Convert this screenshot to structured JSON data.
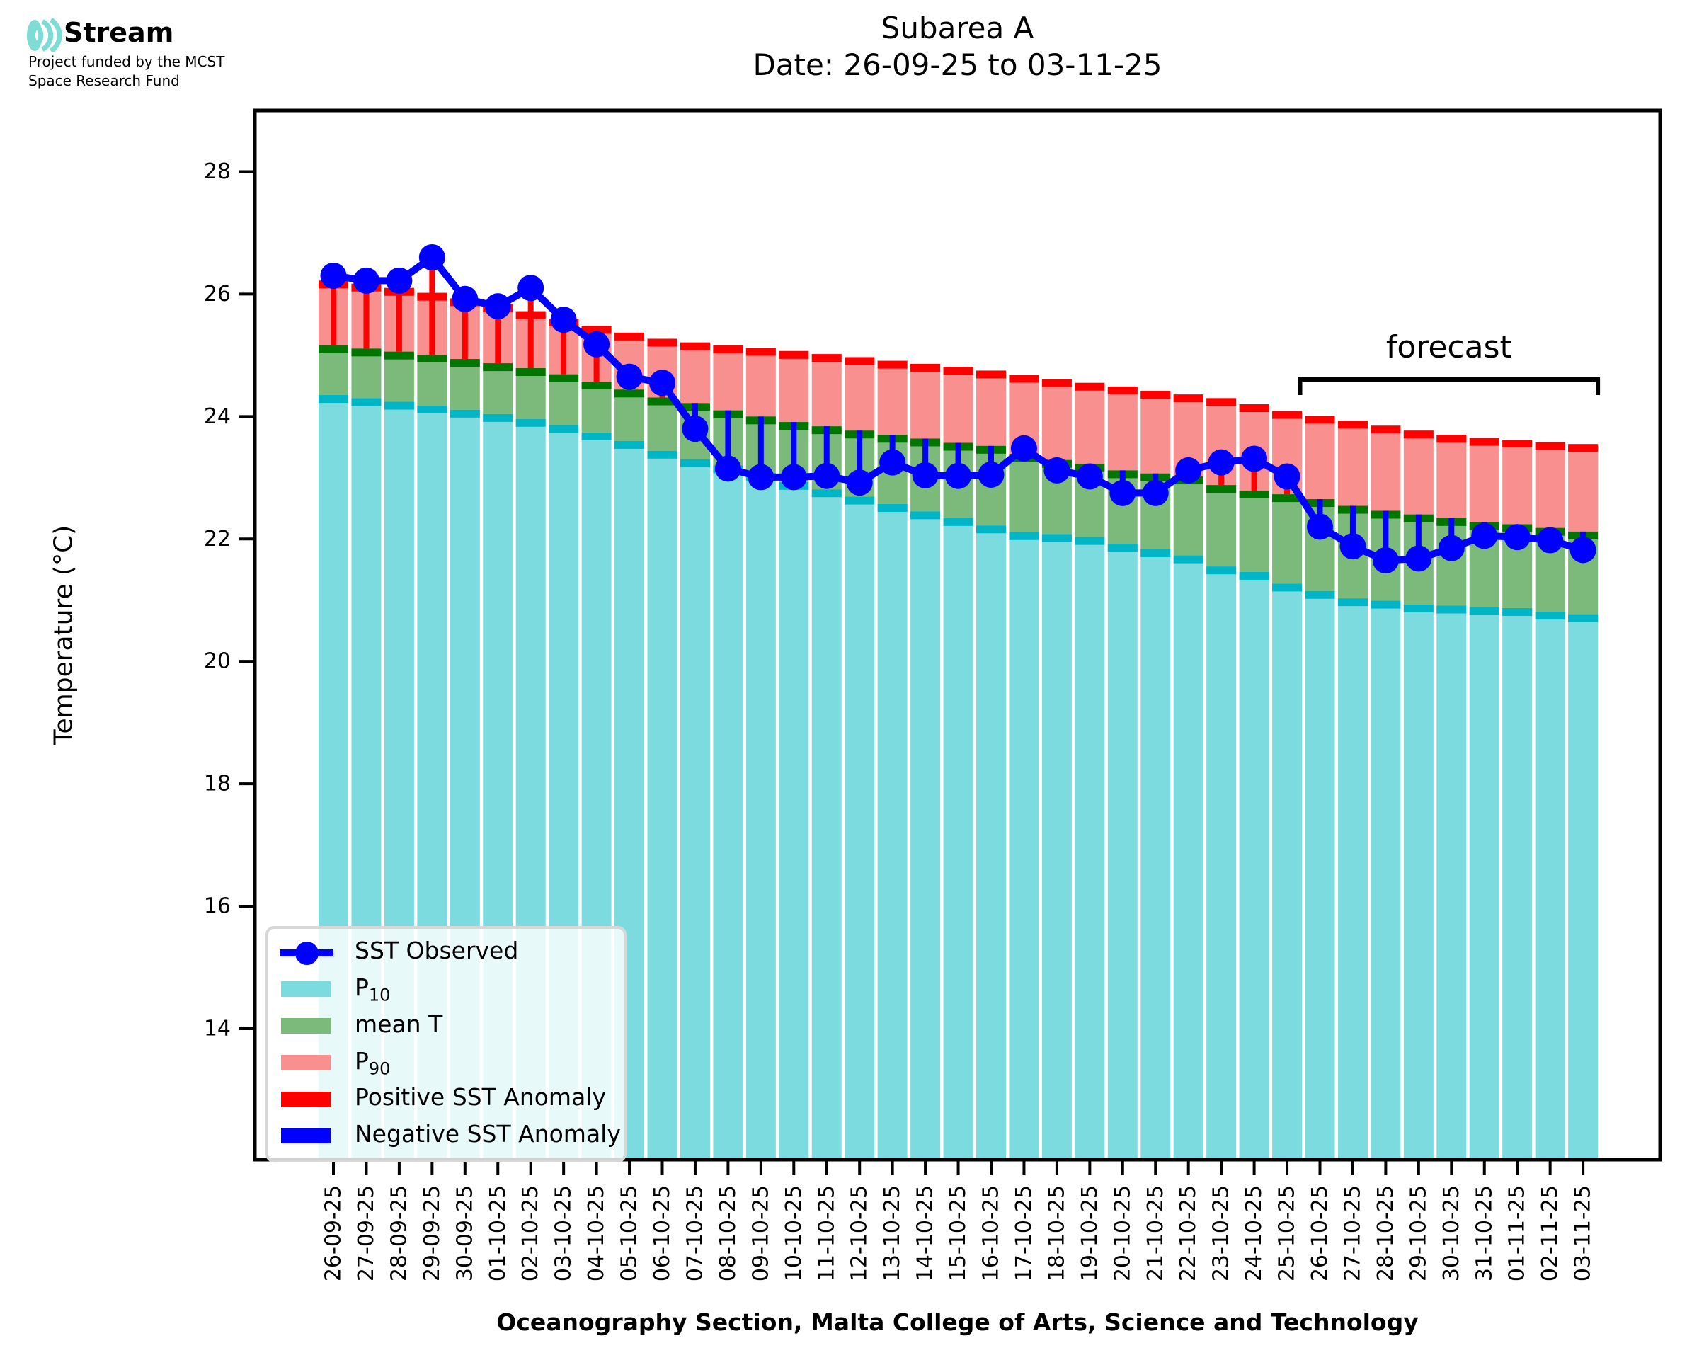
{
  "logo": {
    "brand": "Stream",
    "subtitle_line1": "Project funded by the MCST",
    "subtitle_line2": "Space Research Fund",
    "icon_color": "#7DDCD3"
  },
  "title": {
    "line1": "Subarea A",
    "line2": "Date: 26-09-25 to 03-11-25"
  },
  "axes": {
    "y_label": "Temperature (°C)",
    "x_label": "Oceanography Section, Malta College of Arts, Science and Technology"
  },
  "legend": {
    "items": [
      {
        "base": "SST Observed",
        "sub": "",
        "type": "line-dot",
        "color": "#0000FF"
      },
      {
        "base": "P",
        "sub": "10",
        "type": "patch",
        "color": "#7CDBDE"
      },
      {
        "base": "mean T",
        "sub": "",
        "type": "patch",
        "color": "#7CBA7C"
      },
      {
        "base": "P",
        "sub": "90",
        "type": "patch",
        "color": "#F89090"
      },
      {
        "base": "Positive SST Anomaly",
        "sub": "",
        "type": "patch",
        "color": "#FF0000"
      },
      {
        "base": "Negative SST Anomaly",
        "sub": "",
        "type": "patch",
        "color": "#0000FF"
      }
    ]
  },
  "chart_data": {
    "type": "bar",
    "title": "Subarea A",
    "subtitle": "Date: 26-09-25 to 03-11-25",
    "xlabel": "Oceanography Section, Malta College of Arts, Science and Technology",
    "ylabel": "Temperature (°C)",
    "ylim": [
      11.86,
      29.0
    ],
    "yticks": [
      14,
      16,
      18,
      20,
      22,
      24,
      26,
      28
    ],
    "grid": false,
    "legend_position": "lower left",
    "forecast_label": "forecast",
    "forecast_start_index": 30,
    "categories": [
      "26-09-25",
      "27-09-25",
      "28-09-25",
      "29-09-25",
      "30-09-25",
      "01-10-25",
      "02-10-25",
      "03-10-25",
      "04-10-25",
      "05-10-25",
      "06-10-25",
      "07-10-25",
      "08-10-25",
      "09-10-25",
      "10-10-25",
      "11-10-25",
      "12-10-25",
      "13-10-25",
      "14-10-25",
      "15-10-25",
      "16-10-25",
      "17-10-25",
      "18-10-25",
      "19-10-25",
      "20-10-25",
      "21-10-25",
      "22-10-25",
      "23-10-25",
      "24-10-25",
      "25-10-25",
      "26-10-25",
      "27-10-25",
      "28-10-25",
      "29-10-25",
      "30-10-25",
      "31-10-25",
      "01-11-25",
      "02-11-25",
      "03-11-25"
    ],
    "series": [
      {
        "name": "P10",
        "values": [
          24.35,
          24.3,
          24.24,
          24.18,
          24.11,
          24.04,
          23.96,
          23.86,
          23.74,
          23.6,
          23.44,
          23.3,
          23.2,
          23.08,
          22.93,
          22.81,
          22.69,
          22.57,
          22.45,
          22.34,
          22.22,
          22.11,
          22.08,
          22.03,
          21.92,
          21.83,
          21.73,
          21.55,
          21.46,
          21.27,
          21.15,
          21.03,
          20.99,
          20.93,
          20.91,
          20.89,
          20.87,
          20.81,
          20.77
        ]
      },
      {
        "name": "mean T",
        "values": [
          25.16,
          25.11,
          25.06,
          25.01,
          24.94,
          24.87,
          24.79,
          24.69,
          24.57,
          24.44,
          24.31,
          24.22,
          24.1,
          24.0,
          23.91,
          23.84,
          23.77,
          23.7,
          23.64,
          23.57,
          23.52,
          23.39,
          23.29,
          23.23,
          23.12,
          23.07,
          23.02,
          22.88,
          22.79,
          22.73,
          22.65,
          22.54,
          22.46,
          22.4,
          22.34,
          22.28,
          22.24,
          22.18,
          22.12
        ]
      },
      {
        "name": "P90",
        "values": [
          26.22,
          26.17,
          26.1,
          26.02,
          25.93,
          25.83,
          25.72,
          25.6,
          25.48,
          25.37,
          25.27,
          25.21,
          25.16,
          25.12,
          25.07,
          25.02,
          24.97,
          24.91,
          24.86,
          24.81,
          24.75,
          24.68,
          24.61,
          24.55,
          24.49,
          24.42,
          24.36,
          24.3,
          24.2,
          24.09,
          24.01,
          23.93,
          23.85,
          23.77,
          23.7,
          23.65,
          23.62,
          23.58,
          23.55
        ]
      },
      {
        "name": "SST Observed",
        "values": [
          26.3,
          26.22,
          26.22,
          26.6,
          25.92,
          25.8,
          26.1,
          25.58,
          25.18,
          24.65,
          24.55,
          23.8,
          23.15,
          23.01,
          23.01,
          23.03,
          22.92,
          23.25,
          23.04,
          23.03,
          23.05,
          23.48,
          23.12,
          23.02,
          22.75,
          22.75,
          23.12,
          23.25,
          23.31,
          23.02,
          22.2,
          21.88,
          21.65,
          21.68,
          21.85,
          22.05,
          22.03,
          21.98,
          21.82
        ]
      }
    ],
    "colors": {
      "p10_fill": "#7CDBDE",
      "p10_cap": "#00B5C5",
      "mean_fill": "#7CBA7C",
      "mean_cap": "#007500",
      "p90_fill": "#F89090",
      "p90_cap": "#FF0000",
      "sst_line": "#0000FF",
      "positive_anomaly": "#FF0000",
      "negative_anomaly": "#0000FF",
      "axis": "#000000"
    }
  }
}
